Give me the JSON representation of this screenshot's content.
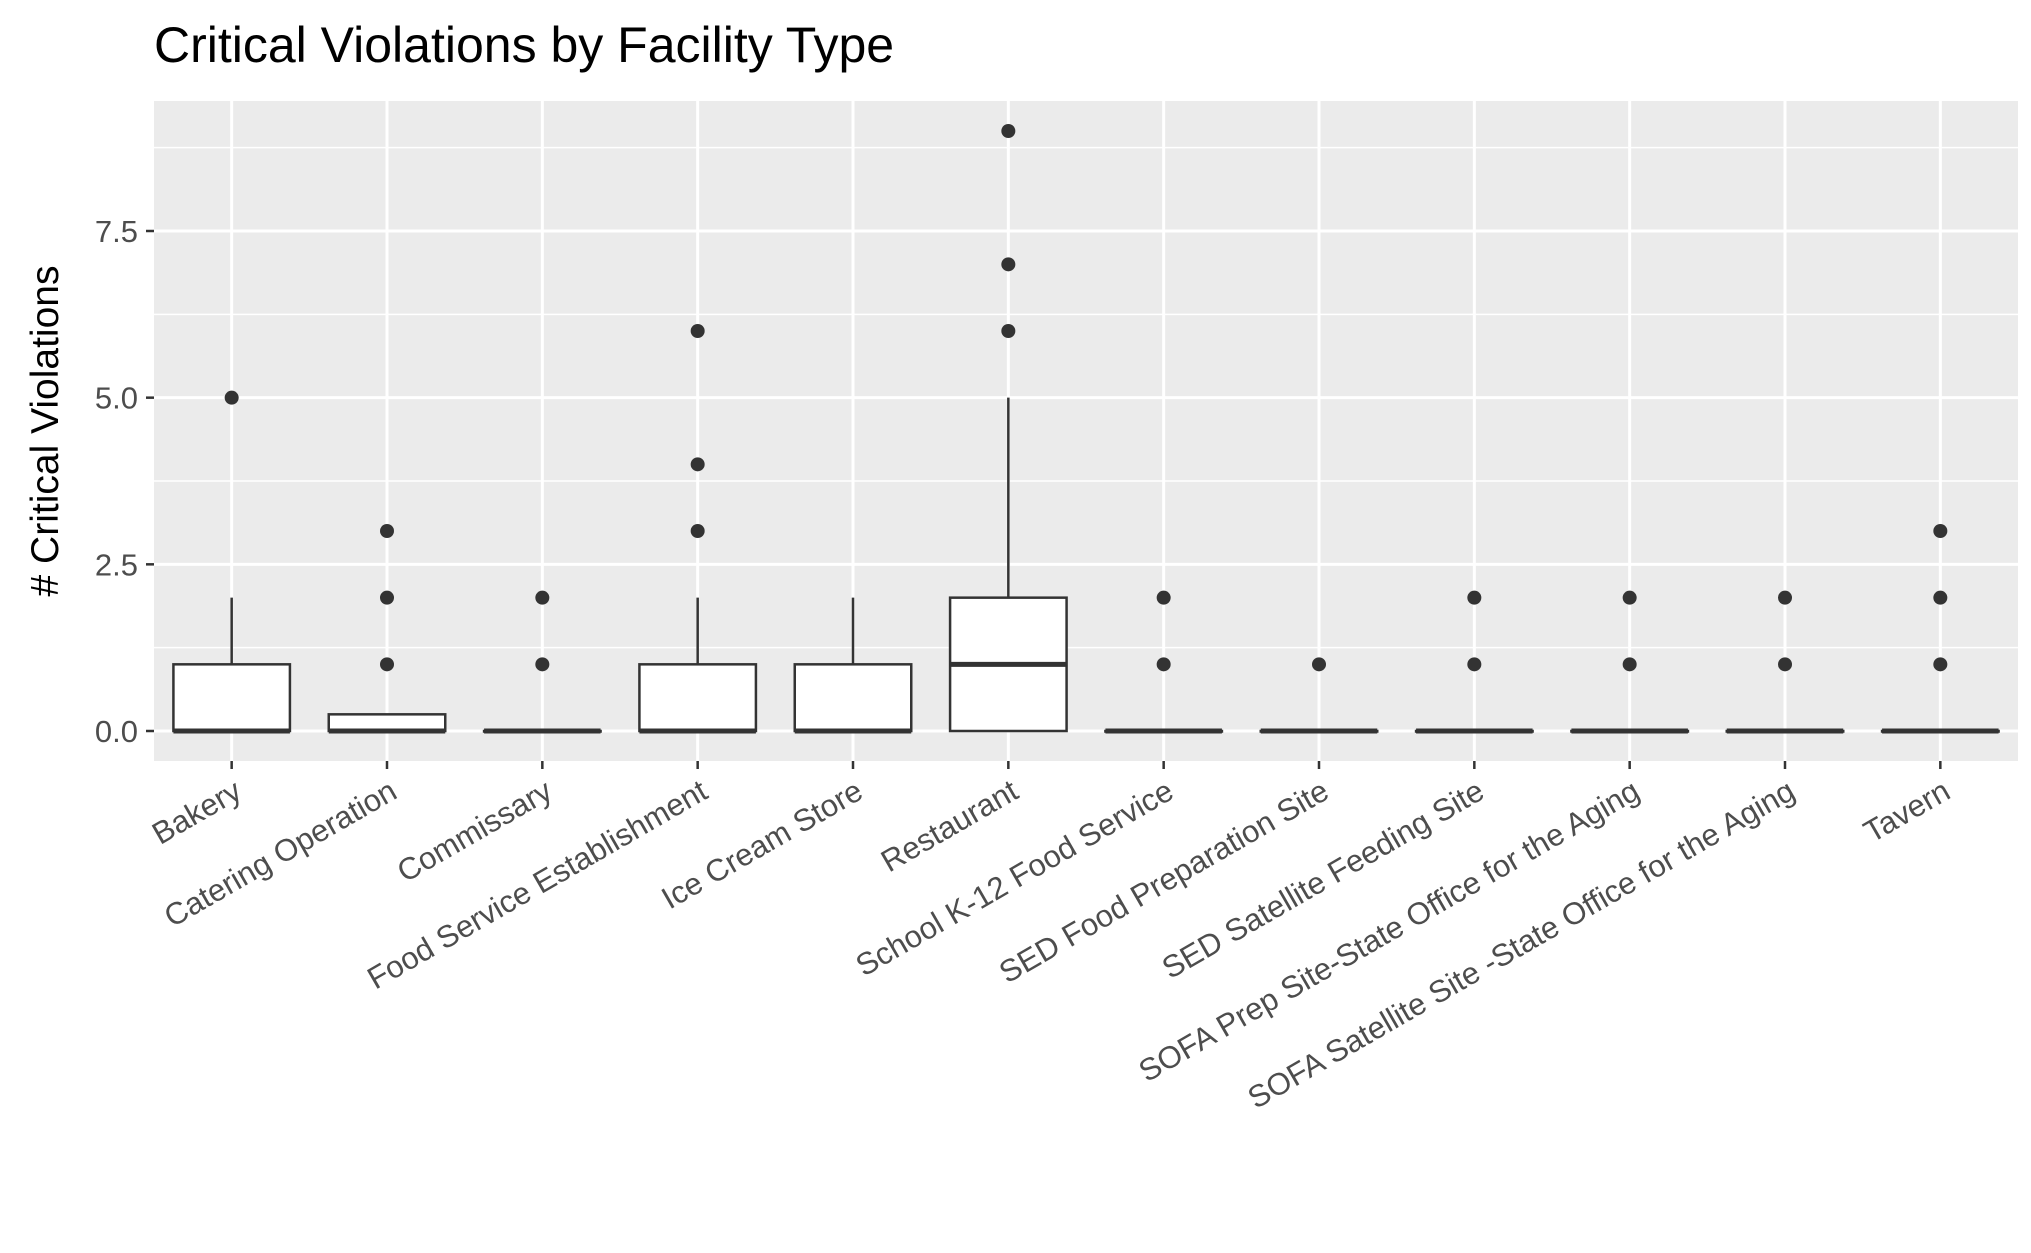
{
  "chart_data": {
    "type": "boxplot",
    "title": "Critical Violations by Facility Type",
    "xlabel": "",
    "ylabel": "# Critical Violations",
    "ylim": [
      -0.45,
      9.45
    ],
    "yticks": [
      0.0,
      2.5,
      5.0,
      7.5
    ],
    "ytick_labels": [
      "0.0",
      "2.5",
      "5.0",
      "7.5"
    ],
    "grid": true,
    "legend": "none",
    "colors": {
      "panel": "#ebebeb",
      "grid": "#ffffff",
      "box_fill": "#ffffff",
      "box_stroke": "#333333",
      "outlier": "#333333",
      "tick_text": "#4d4d4d"
    },
    "categories": [
      "Bakery",
      "Catering Operation",
      "Commissary",
      "Food Service Establishment",
      "Ice Cream Store",
      "Restaurant",
      "School K-12 Food Service",
      "SED Food Preparation Site",
      "SED Satellite Feeding Site",
      "SOFA Prep Site-State Office for the Aging",
      "SOFA Satellite Site -State Office for the Aging",
      "Tavern"
    ],
    "boxes": [
      {
        "min": 0,
        "q1": 0,
        "median": 0,
        "q3": 1,
        "max": 2,
        "outliers": [
          5
        ]
      },
      {
        "min": 0,
        "q1": 0,
        "median": 0,
        "q3": 0.25,
        "max": 0.25,
        "outliers": [
          1,
          2,
          3
        ]
      },
      {
        "min": 0,
        "q1": 0,
        "median": 0,
        "q3": 0,
        "max": 0,
        "outliers": [
          1,
          2
        ]
      },
      {
        "min": 0,
        "q1": 0,
        "median": 0,
        "q3": 1,
        "max": 2,
        "outliers": [
          3,
          4,
          6
        ]
      },
      {
        "min": 0,
        "q1": 0,
        "median": 0,
        "q3": 1,
        "max": 2,
        "outliers": []
      },
      {
        "min": 0,
        "q1": 0,
        "median": 1,
        "q3": 2,
        "max": 5,
        "outliers": [
          6,
          7,
          9
        ]
      },
      {
        "min": 0,
        "q1": 0,
        "median": 0,
        "q3": 0,
        "max": 0,
        "outliers": [
          1,
          2
        ]
      },
      {
        "min": 0,
        "q1": 0,
        "median": 0,
        "q3": 0,
        "max": 0,
        "outliers": [
          1
        ]
      },
      {
        "min": 0,
        "q1": 0,
        "median": 0,
        "q3": 0,
        "max": 0,
        "outliers": [
          1,
          2
        ]
      },
      {
        "min": 0,
        "q1": 0,
        "median": 0,
        "q3": 0,
        "max": 0,
        "outliers": [
          1,
          2
        ]
      },
      {
        "min": 0,
        "q1": 0,
        "median": 0,
        "q3": 0,
        "max": 0,
        "outliers": [
          1,
          2
        ]
      },
      {
        "min": 0,
        "q1": 0,
        "median": 0,
        "q3": 0,
        "max": 0,
        "outliers": [
          1,
          2,
          3
        ]
      }
    ]
  }
}
